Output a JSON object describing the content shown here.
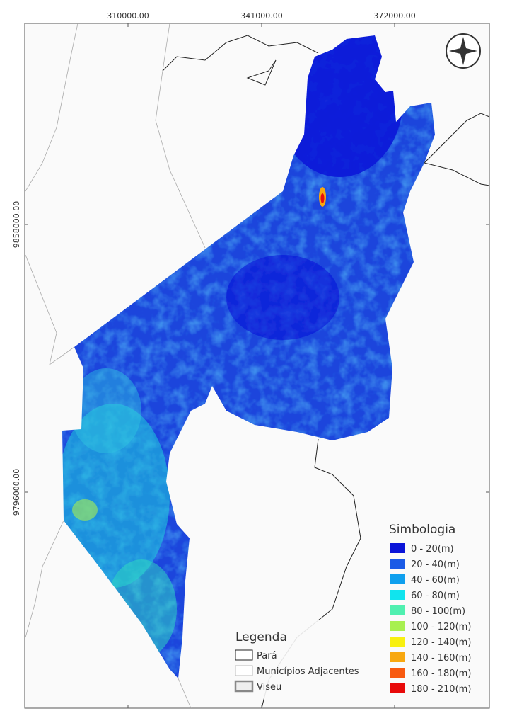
{
  "map": {
    "grid_labels_top": [
      "310000.00",
      "341000.00",
      "372000.00"
    ],
    "grid_labels_left": [
      "9858000.00",
      "9796000.00"
    ],
    "legend": {
      "title": "Legenda",
      "items": [
        {
          "label": "Pará",
          "color": "#ffffff",
          "stroke": "#222222"
        },
        {
          "label": "Municípios Adjacentes",
          "color": "#ffffff",
          "stroke": "#bbbbbb"
        },
        {
          "label": "Viseu",
          "color": "#eeeeee",
          "stroke": "#888888"
        }
      ]
    },
    "symbology": {
      "title": "Simbologia",
      "classes": [
        {
          "label": "0 - 20(m)",
          "color": "#0a14d8"
        },
        {
          "label": "20 - 40(m)",
          "color": "#1a5ae6"
        },
        {
          "label": "40 - 60(m)",
          "color": "#10a0ee"
        },
        {
          "label": "60 - 80(m)",
          "color": "#10e4ee"
        },
        {
          "label": "80 - 100(m)",
          "color": "#50f0b0"
        },
        {
          "label": "100 - 120(m)",
          "color": "#a8f050"
        },
        {
          "label": "120 - 140(m)",
          "color": "#f8f010"
        },
        {
          "label": "140 - 160(m)",
          "color": "#f8a810"
        },
        {
          "label": "160 - 180(m)",
          "color": "#f85a10"
        },
        {
          "label": "180 - 210(m)",
          "color": "#e80a0a"
        }
      ]
    }
  }
}
